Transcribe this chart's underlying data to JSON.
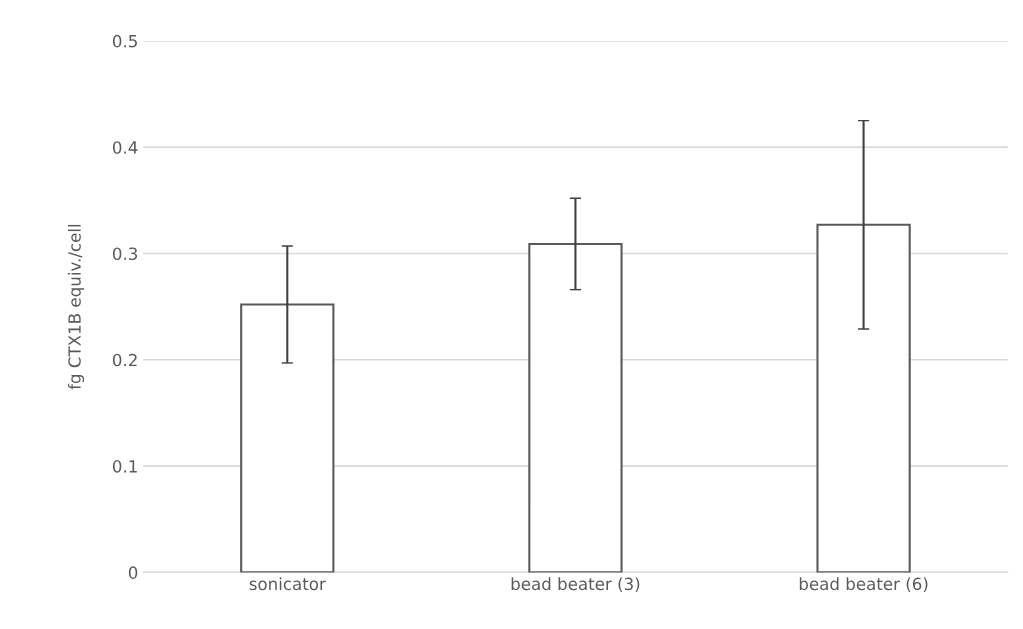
{
  "chart_data": {
    "type": "bar",
    "ylabel": "fg CTX1B equiv./cell",
    "categories": [
      "sonicator",
      "bead beater (3)",
      "bead beater (6)"
    ],
    "values": [
      0.252,
      0.309,
      0.327
    ],
    "errors": [
      0.055,
      0.043,
      0.098
    ],
    "color": "#ffffff",
    "ylim": [
      0,
      0.5
    ],
    "yticks": [
      0,
      0.1,
      0.2,
      0.3,
      0.4,
      0.5
    ],
    "grid": "y",
    "legend": false
  }
}
